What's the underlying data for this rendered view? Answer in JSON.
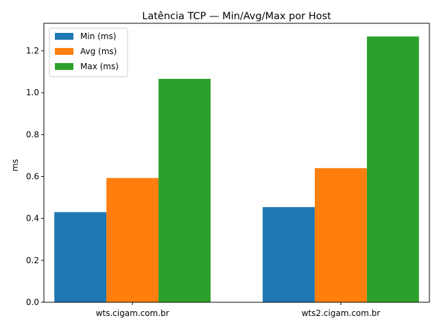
{
  "chart_data": {
    "type": "bar",
    "title": "Latência TCP — Min/Avg/Max por Host",
    "xlabel": "",
    "ylabel": "ms",
    "categories": [
      "wts.cigam.com.br",
      "wts2.cigam.com.br"
    ],
    "series": [
      {
        "name": "Min (ms)",
        "values": [
          0.43,
          0.454
        ],
        "color": "#1f77b4"
      },
      {
        "name": "Avg (ms)",
        "values": [
          0.593,
          0.64
        ],
        "color": "#ff7f0e"
      },
      {
        "name": "Max (ms)",
        "values": [
          1.066,
          1.268
        ],
        "color": "#2ca02c"
      }
    ],
    "ylim": [
      0,
      1.331
    ],
    "yticks": [
      "0.0",
      "0.2",
      "0.4",
      "0.6",
      "0.8",
      "1.0",
      "1.2"
    ],
    "grid": false,
    "legend": "top-left"
  }
}
